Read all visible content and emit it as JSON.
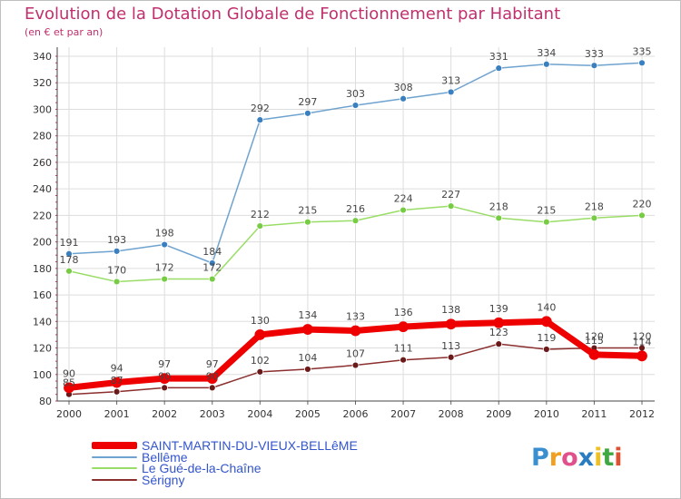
{
  "title": "Evolution de la Dotation Globale de Fonctionnement par Habitant",
  "subtitle": "(en € et par an)",
  "logo": {
    "text": "Proxiti",
    "letters": [
      "P",
      "r",
      "o",
      "x",
      "i",
      "t",
      "i"
    ],
    "colors": [
      "#3a8fd0",
      "#f0a020",
      "#e0508a",
      "#2a7cc0",
      "#f0c020",
      "#40a840",
      "#e05030"
    ]
  },
  "chart_data": {
    "type": "line",
    "title": "Evolution de la Dotation Globale de Fonctionnement par Habitant",
    "subtitle": "(en € et par an)",
    "x": [
      "2000",
      "2001",
      "2002",
      "2003",
      "2004",
      "2005",
      "2006",
      "2007",
      "2008",
      "2009",
      "2010",
      "2011",
      "2012"
    ],
    "ylim": [
      80,
      340
    ],
    "yticks": [
      80,
      100,
      120,
      140,
      160,
      180,
      200,
      220,
      240,
      260,
      280,
      300,
      320,
      340
    ],
    "grid": true,
    "legend_position": "bottom-left",
    "series": [
      {
        "name": "SAINT-MARTIN-DU-VIEUX-BELLêME",
        "color": "#ee0000",
        "width": 7,
        "marker_color": "#ee0000",
        "values": [
          90,
          94,
          97,
          97,
          130,
          134,
          133,
          136,
          138,
          139,
          140,
          115,
          114
        ],
        "labels": [
          "90",
          "94",
          "97",
          "97",
          "130",
          "134",
          "133",
          "136",
          "138",
          "139",
          "140",
          "115",
          "114"
        ]
      },
      {
        "name": "Bellême",
        "color": "#6fa3cf",
        "width": 1.5,
        "marker_color": "#3a7fc0",
        "values": [
          191,
          193,
          198,
          184,
          292,
          297,
          303,
          308,
          313,
          331,
          334,
          333,
          335
        ],
        "labels": [
          "191",
          "193",
          "198",
          "184",
          "292",
          "297",
          "303",
          "308",
          "313",
          "331",
          "334",
          "333",
          "335"
        ]
      },
      {
        "name": "Le Gué-de-la-Chaîne",
        "color": "#99dd66",
        "width": 1.5,
        "marker_color": "#77cc44",
        "values": [
          178,
          170,
          172,
          172,
          212,
          215,
          216,
          224,
          227,
          218,
          215,
          218,
          220
        ],
        "labels": [
          "178",
          "170",
          "172",
          "172",
          "212",
          "215",
          "216",
          "224",
          "227",
          "218",
          "215",
          "218",
          "220"
        ]
      },
      {
        "name": "Sérigny",
        "color": "#8b2e2e",
        "width": 1.5,
        "marker_color": "#6b1a1a",
        "values": [
          85,
          87,
          90,
          90,
          102,
          104,
          107,
          111,
          113,
          123,
          119,
          120,
          120
        ],
        "labels": [
          "85",
          "87",
          "90",
          "90",
          "102",
          "104",
          "107",
          "111",
          "113",
          "123",
          "119",
          "120",
          "120"
        ]
      }
    ]
  }
}
